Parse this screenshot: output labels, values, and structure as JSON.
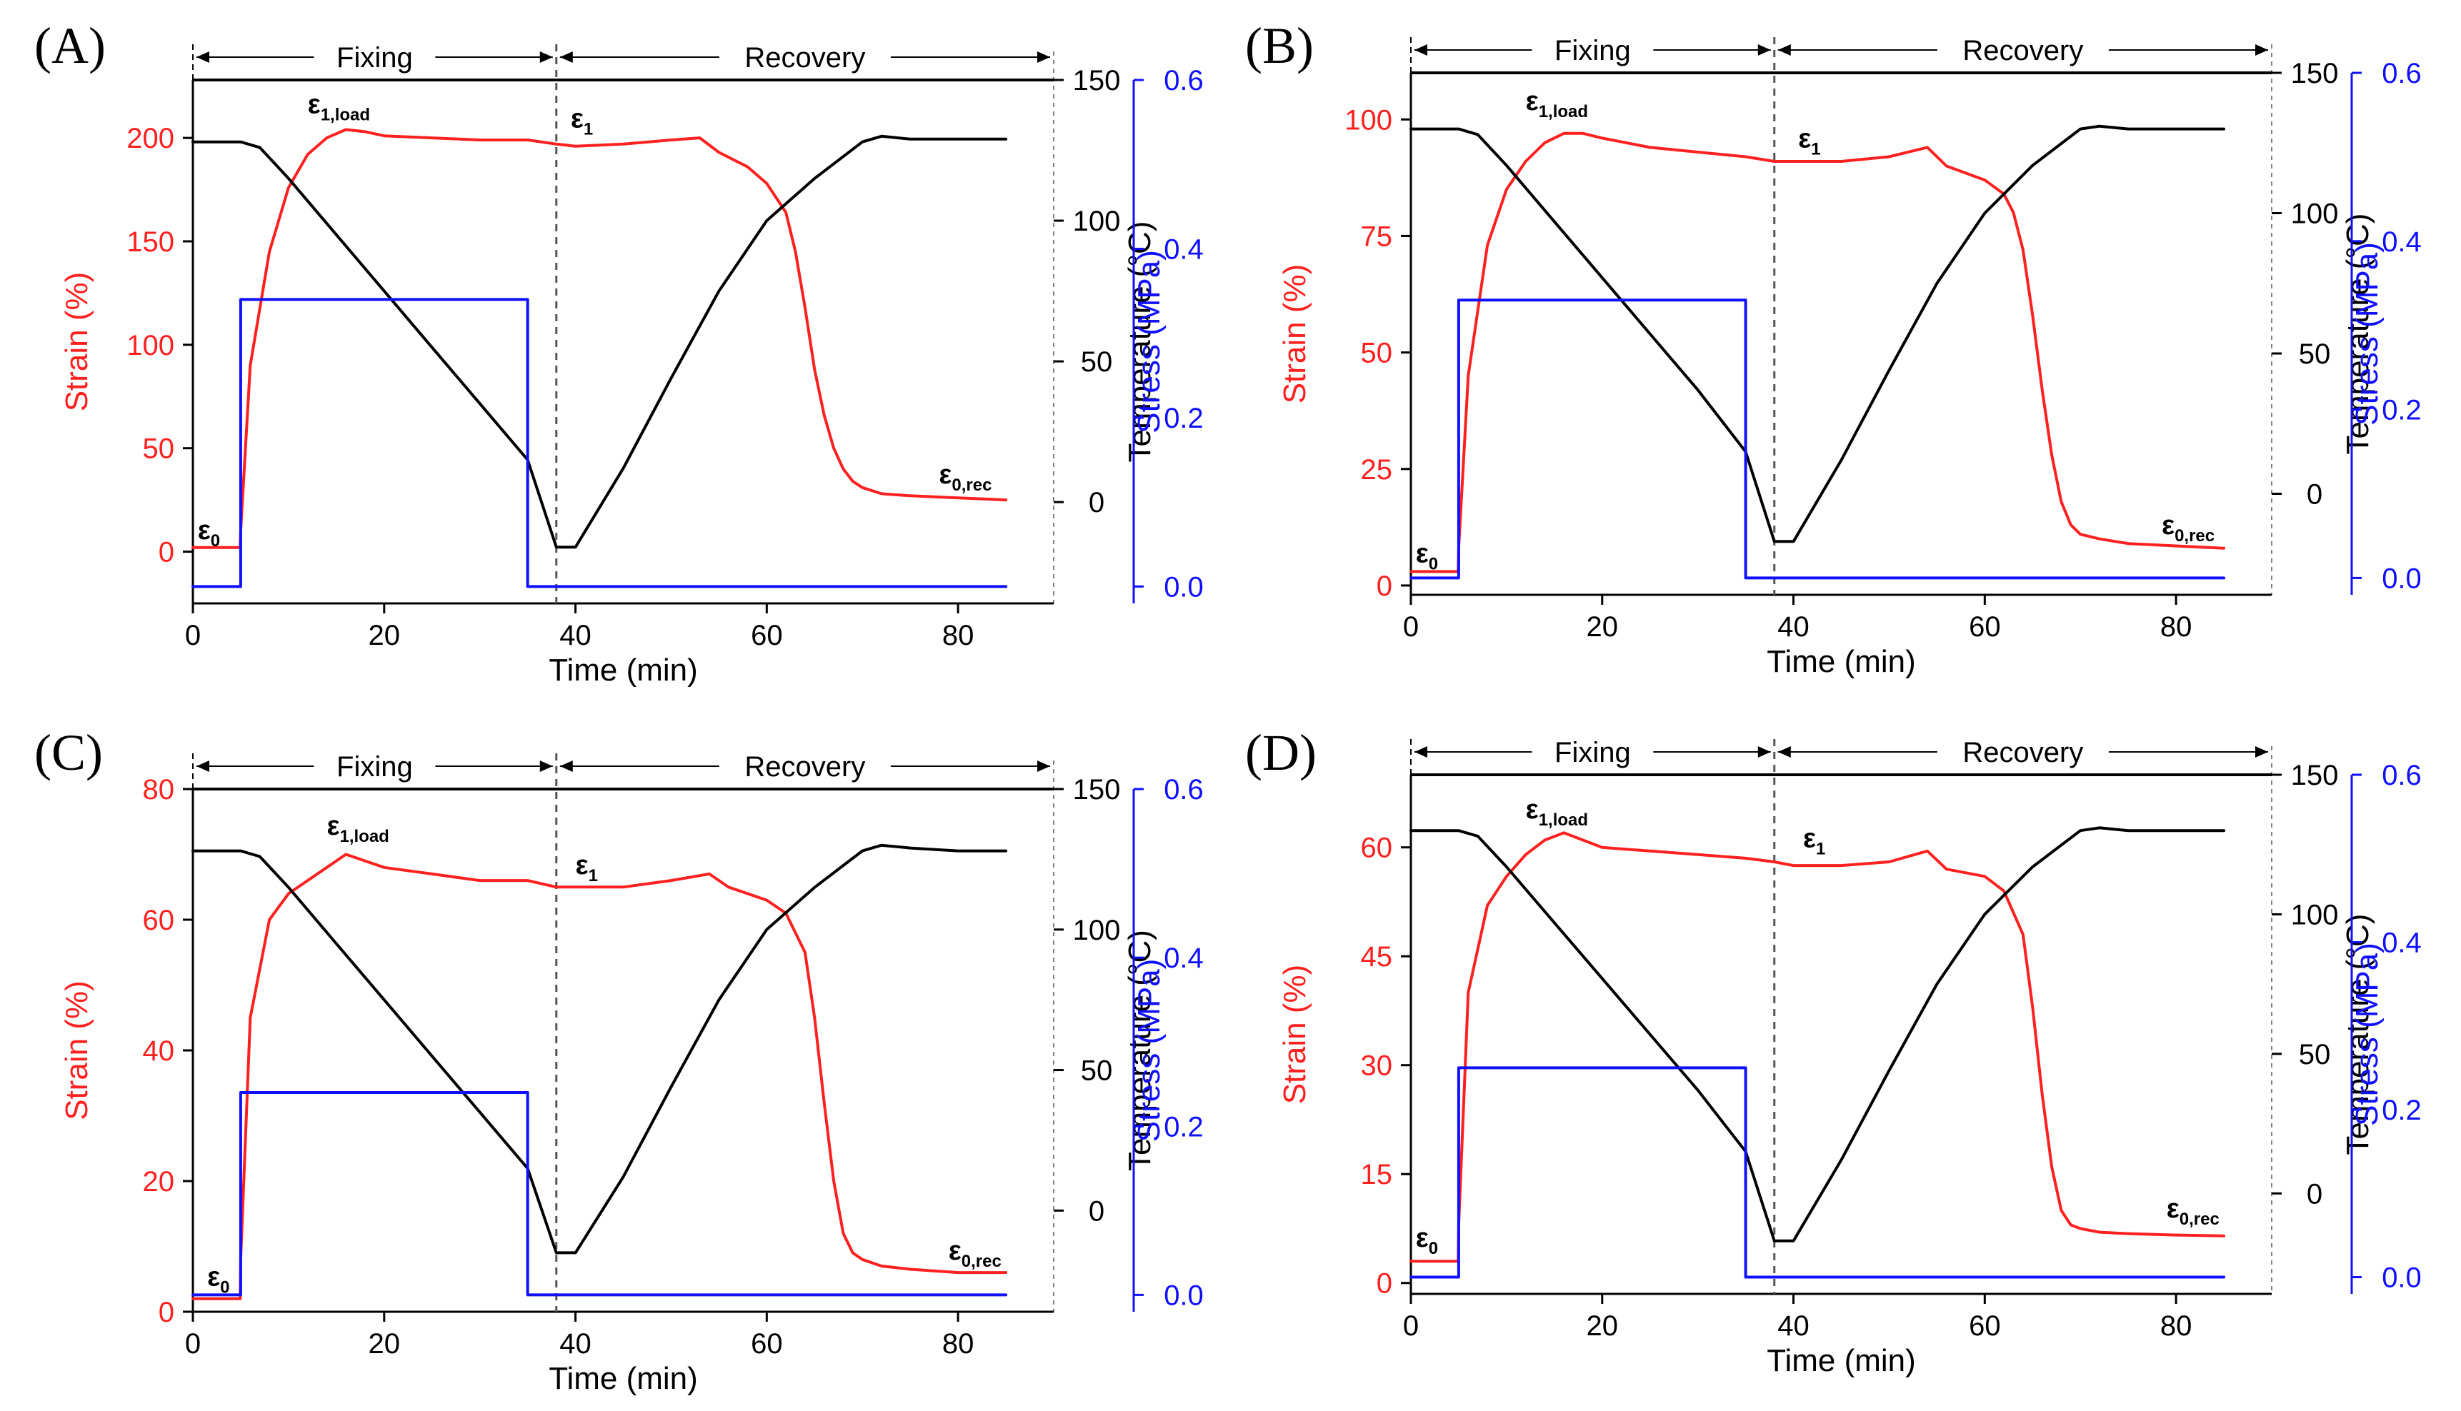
{
  "colors": {
    "strain": "#ff2020",
    "temperature": "#000000",
    "stress": "#1010ff"
  },
  "chart_data": [
    {
      "type": "line",
      "panel_label": "(A)",
      "xlabel": "Time (min)",
      "xlim": [
        0,
        90
      ],
      "xticks": [
        0,
        20,
        40,
        60,
        80
      ],
      "y_strain": {
        "label": "Strain (%)",
        "lim": [
          -25,
          228
        ],
        "ticks": [
          0,
          50,
          100,
          150,
          200
        ]
      },
      "y_temperature": {
        "label": "Temperature (°C)",
        "lim": [
          -36,
          150
        ],
        "ticks": [
          0,
          50,
          100,
          150
        ]
      },
      "y_stress": {
        "label": "Stress (MPa)",
        "lim": [
          -0.02,
          0.6
        ],
        "ticks": [
          0.0,
          0.2,
          0.4,
          0.6
        ],
        "tick_labels": [
          "0.0",
          "0.2",
          "0.4",
          "0.6"
        ]
      },
      "phases": {
        "fixing_label": "Fixing",
        "recovery_label": "Recovery",
        "split_time": 38
      },
      "series": [
        {
          "name": "Strain (%)",
          "axis": "strain",
          "x": [
            0,
            4.95,
            5,
            6,
            8,
            10,
            12,
            14,
            16,
            18,
            20,
            25,
            30,
            35,
            38,
            40,
            45,
            50,
            53,
            55,
            58,
            60,
            62,
            63,
            64,
            65,
            66,
            67,
            68,
            69,
            70,
            72,
            75,
            80,
            85
          ],
          "y": [
            2,
            2,
            10,
            90,
            145,
            176,
            192,
            200,
            204,
            203,
            201,
            200,
            199,
            199,
            197,
            196,
            197,
            199,
            200,
            193,
            186,
            178,
            164,
            145,
            118,
            88,
            66,
            50,
            40,
            34,
            31,
            28,
            27,
            26,
            25
          ]
        },
        {
          "name": "Temperature (°C)",
          "axis": "temperature",
          "x": [
            0,
            5,
            7,
            10,
            15,
            20,
            25,
            30,
            35,
            38,
            40,
            45,
            50,
            55,
            60,
            65,
            70,
            72,
            75,
            80,
            85
          ],
          "y": [
            128,
            128,
            126,
            115,
            95,
            75,
            55,
            35,
            15,
            -16,
            -16,
            12,
            44,
            75,
            100,
            115,
            128,
            130,
            129,
            129,
            129
          ]
        },
        {
          "name": "Stress (MPa)",
          "axis": "stress",
          "x": [
            0,
            5,
            5,
            35,
            35,
            85
          ],
          "y": [
            0.0,
            0.0,
            0.34,
            0.34,
            0.0,
            0.0
          ]
        }
      ],
      "annotations": [
        {
          "base": "ε",
          "sub": "0",
          "x": 0.5,
          "y": 6
        },
        {
          "base": "ε",
          "sub": "1,load",
          "x": 12,
          "y": 212
        },
        {
          "base": "ε",
          "sub": "1",
          "x": 39.5,
          "y": 205
        },
        {
          "base": "ε",
          "sub": "0,rec",
          "x": 78,
          "y": 33
        }
      ]
    },
    {
      "type": "line",
      "panel_label": "(B)",
      "xlabel": "Time (min)",
      "xlim": [
        0,
        90
      ],
      "xticks": [
        0,
        20,
        40,
        60,
        80
      ],
      "y_strain": {
        "label": "Strain (%)",
        "lim": [
          -2,
          110
        ],
        "ticks": [
          0,
          25,
          50,
          75,
          100
        ]
      },
      "y_temperature": {
        "label": "Temperature (°C)",
        "lim": [
          -36,
          150
        ],
        "ticks": [
          0,
          50,
          100,
          150
        ]
      },
      "y_stress": {
        "label": "Stress (MPa)",
        "lim": [
          -0.02,
          0.6
        ],
        "ticks": [
          0.0,
          0.2,
          0.4,
          0.6
        ],
        "tick_labels": [
          "0.0",
          "0.2",
          "0.4",
          "0.6"
        ]
      },
      "phases": {
        "fixing_label": "Fixing",
        "recovery_label": "Recovery",
        "split_time": 38
      },
      "series": [
        {
          "name": "Strain (%)",
          "axis": "strain",
          "x": [
            0,
            4.95,
            5,
            6,
            8,
            10,
            12,
            14,
            16,
            18,
            20,
            25,
            30,
            35,
            38,
            40,
            45,
            50,
            54,
            56,
            60,
            62,
            63,
            64,
            65,
            66,
            67,
            68,
            69,
            70,
            72,
            75,
            80,
            85
          ],
          "y": [
            3,
            3,
            8,
            45,
            73,
            85,
            91,
            95,
            97,
            97,
            96,
            94,
            93,
            92,
            91,
            91,
            91,
            92,
            94,
            90,
            87,
            84,
            80,
            72,
            58,
            42,
            28,
            18,
            13,
            11,
            10,
            9,
            8.5,
            8
          ]
        },
        {
          "name": "Temperature (°C)",
          "axis": "temperature",
          "x": [
            0,
            5,
            7,
            10,
            15,
            20,
            25,
            30,
            35,
            38,
            40,
            45,
            50,
            55,
            60,
            65,
            70,
            72,
            75,
            80,
            85
          ],
          "y": [
            130,
            130,
            128,
            117,
            97,
            77,
            57,
            37,
            15,
            -17,
            -17,
            12,
            44,
            75,
            100,
            117,
            130,
            131,
            130,
            130,
            130
          ]
        },
        {
          "name": "Stress (MPa)",
          "axis": "stress",
          "x": [
            0,
            5,
            5,
            35,
            35,
            85
          ],
          "y": [
            0.0,
            0.0,
            0.33,
            0.33,
            0.0,
            0.0
          ]
        }
      ],
      "annotations": [
        {
          "base": "ε",
          "sub": "0",
          "x": 0.5,
          "y": 5
        },
        {
          "base": "ε",
          "sub": "1,load",
          "x": 12,
          "y": 102
        },
        {
          "base": "ε",
          "sub": "1",
          "x": 40.5,
          "y": 94
        },
        {
          "base": "ε",
          "sub": "0,rec",
          "x": 78.5,
          "y": 11
        }
      ]
    },
    {
      "type": "line",
      "panel_label": "(C)",
      "xlabel": "Time (min)",
      "xlim": [
        0,
        90
      ],
      "xticks": [
        0,
        20,
        40,
        60,
        80
      ],
      "y_strain": {
        "label": "Strain (%)",
        "lim": [
          0,
          80
        ],
        "ticks": [
          0,
          20,
          40,
          60,
          80
        ]
      },
      "y_temperature": {
        "label": "Temperature (°C)",
        "lim": [
          -36,
          150
        ],
        "ticks": [
          0,
          50,
          100,
          150
        ]
      },
      "y_stress": {
        "label": "Stress (MPa)",
        "lim": [
          -0.02,
          0.6
        ],
        "ticks": [
          0.0,
          0.2,
          0.4,
          0.6
        ],
        "tick_labels": [
          "0.0",
          "0.2",
          "0.4",
          "0.6"
        ]
      },
      "phases": {
        "fixing_label": "Fixing",
        "recovery_label": "Recovery",
        "split_time": 38
      },
      "series": [
        {
          "name": "Strain (%)",
          "axis": "strain",
          "x": [
            0,
            4.95,
            5,
            6,
            8,
            10,
            12,
            14,
            16,
            18,
            20,
            25,
            30,
            35,
            38,
            40,
            45,
            50,
            54,
            56,
            60,
            62,
            64,
            65,
            66,
            67,
            68,
            69,
            70,
            72,
            75,
            80,
            85
          ],
          "y": [
            2,
            2,
            8,
            45,
            60,
            64,
            66,
            68,
            70,
            69,
            68,
            67,
            66,
            66,
            65,
            65,
            65,
            66,
            67,
            65,
            63,
            61,
            55,
            45,
            32,
            20,
            12,
            9,
            8,
            7,
            6.5,
            6,
            6
          ]
        },
        {
          "name": "Temperature (°C)",
          "axis": "temperature",
          "x": [
            0,
            5,
            7,
            10,
            15,
            20,
            25,
            30,
            35,
            38,
            40,
            45,
            50,
            55,
            60,
            65,
            70,
            72,
            75,
            80,
            85
          ],
          "y": [
            128,
            128,
            126,
            115,
            95,
            75,
            55,
            35,
            15,
            -15,
            -15,
            12,
            44,
            75,
            100,
            115,
            128,
            130,
            129,
            128,
            128
          ]
        },
        {
          "name": "Stress (MPa)",
          "axis": "stress",
          "x": [
            0,
            5,
            5,
            35,
            35,
            85
          ],
          "y": [
            0.0,
            0.0,
            0.24,
            0.24,
            0.0,
            0.0
          ]
        }
      ],
      "annotations": [
        {
          "base": "ε",
          "sub": "0",
          "x": 1.5,
          "y": 4
        },
        {
          "base": "ε",
          "sub": "1,load",
          "x": 14,
          "y": 73
        },
        {
          "base": "ε",
          "sub": "1",
          "x": 40,
          "y": 67
        },
        {
          "base": "ε",
          "sub": "0,rec",
          "x": 79,
          "y": 8
        }
      ]
    },
    {
      "type": "line",
      "panel_label": "(D)",
      "xlabel": "Time (min)",
      "xlim": [
        0,
        90
      ],
      "xticks": [
        0,
        20,
        40,
        60,
        80
      ],
      "y_strain": {
        "label": "Strain (%)",
        "lim": [
          -1.5,
          70
        ],
        "ticks": [
          0,
          15,
          30,
          45,
          60
        ]
      },
      "y_temperature": {
        "label": "Temperature (°C)",
        "lim": [
          -36,
          150
        ],
        "ticks": [
          0,
          50,
          100,
          150
        ]
      },
      "y_stress": {
        "label": "Stress (MPa)",
        "lim": [
          -0.02,
          0.6
        ],
        "ticks": [
          0.0,
          0.2,
          0.4,
          0.6
        ],
        "tick_labels": [
          "0.0",
          "0.2",
          "0.4",
          "0.6"
        ]
      },
      "phases": {
        "fixing_label": "Fixing",
        "recovery_label": "Recovery",
        "split_time": 38
      },
      "series": [
        {
          "name": "Strain (%)",
          "axis": "strain",
          "x": [
            0,
            4.95,
            5,
            6,
            8,
            10,
            12,
            14,
            16,
            18,
            20,
            25,
            30,
            35,
            38,
            40,
            45,
            50,
            54,
            56,
            60,
            62,
            64,
            65,
            66,
            67,
            68,
            69,
            70,
            72,
            75,
            80,
            85
          ],
          "y": [
            3,
            3,
            8,
            40,
            52,
            56,
            59,
            61,
            62,
            61,
            60,
            59.5,
            59,
            58.5,
            58,
            57.5,
            57.5,
            58,
            59.5,
            57,
            56,
            54,
            48,
            38,
            26,
            16,
            10,
            8,
            7.5,
            7,
            6.8,
            6.6,
            6.5
          ]
        },
        {
          "name": "Temperature (°C)",
          "axis": "temperature",
          "x": [
            0,
            5,
            7,
            10,
            15,
            20,
            25,
            30,
            35,
            38,
            40,
            45,
            50,
            55,
            60,
            65,
            70,
            72,
            75,
            80,
            85
          ],
          "y": [
            130,
            130,
            128,
            117,
            97,
            77,
            57,
            37,
            15,
            -17,
            -17,
            12,
            44,
            75,
            100,
            117,
            130,
            131,
            130,
            130,
            130
          ]
        },
        {
          "name": "Stress (MPa)",
          "axis": "stress",
          "x": [
            0,
            5,
            5,
            35,
            35,
            85
          ],
          "y": [
            0.0,
            0.0,
            0.25,
            0.25,
            0.0,
            0.0
          ]
        }
      ],
      "annotations": [
        {
          "base": "ε",
          "sub": "0",
          "x": 0.5,
          "y": 5
        },
        {
          "base": "ε",
          "sub": "1,load",
          "x": 12,
          "y": 64
        },
        {
          "base": "ε",
          "sub": "1",
          "x": 41,
          "y": 60
        },
        {
          "base": "ε",
          "sub": "0,rec",
          "x": 79,
          "y": 9
        }
      ]
    }
  ]
}
